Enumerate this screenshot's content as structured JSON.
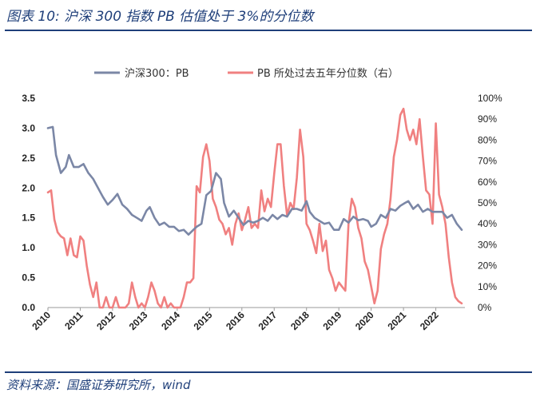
{
  "header": {
    "title": "图表 10:  沪深 300 指数 PB 估值处于 3%的分位数"
  },
  "footer": {
    "source": "资料来源：国盛证券研究所，wind"
  },
  "colors": {
    "pb": "#7b87a6",
    "pct": "#f08080",
    "accent": "#1f3f7a"
  },
  "chart_data": {
    "type": "line",
    "title": "图表 10:  沪深 300 指数 PB 估值处于 3%的分位数",
    "legend_position": "top-center",
    "x_ticks": [
      "2010",
      "2011",
      "2012",
      "2013",
      "2014",
      "2015",
      "2016",
      "2017",
      "2018",
      "2019",
      "2020",
      "2021",
      "2022"
    ],
    "x_range": [
      2010.0,
      2022.9
    ],
    "y_left": {
      "range": [
        0,
        3.5
      ],
      "ticks": [
        "0.0",
        "0.5",
        "1.0",
        "1.5",
        "2.0",
        "2.5",
        "3.0",
        "3.5"
      ]
    },
    "y_right": {
      "range": [
        0,
        1.0
      ],
      "ticks": [
        "0%",
        "10%",
        "20%",
        "30%",
        "40%",
        "50%",
        "60%",
        "70%",
        "80%",
        "90%",
        "100%"
      ]
    },
    "series": [
      {
        "name": "沪深300：PB",
        "axis": "left",
        "color": "#7b87a6",
        "x": [
          2010.0,
          2010.15,
          2010.25,
          2010.4,
          2010.55,
          2010.65,
          2010.8,
          2010.95,
          2011.1,
          2011.25,
          2011.4,
          2011.55,
          2011.7,
          2011.85,
          2012.0,
          2012.15,
          2012.3,
          2012.45,
          2012.6,
          2012.75,
          2012.9,
          2013.05,
          2013.15,
          2013.3,
          2013.45,
          2013.6,
          2013.75,
          2013.9,
          2014.05,
          2014.2,
          2014.35,
          2014.5,
          2014.6,
          2014.75,
          2014.9,
          2015.05,
          2015.2,
          2015.35,
          2015.45,
          2015.6,
          2015.75,
          2015.9,
          2016.05,
          2016.2,
          2016.35,
          2016.5,
          2016.65,
          2016.8,
          2016.95,
          2017.1,
          2017.25,
          2017.4,
          2017.55,
          2017.7,
          2017.85,
          2018.0,
          2018.1,
          2018.25,
          2018.4,
          2018.55,
          2018.7,
          2018.85,
          2019.0,
          2019.15,
          2019.3,
          2019.45,
          2019.6,
          2019.75,
          2019.9,
          2020.0,
          2020.15,
          2020.3,
          2020.45,
          2020.6,
          2020.75,
          2020.9,
          2021.05,
          2021.15,
          2021.3,
          2021.45,
          2021.6,
          2021.75,
          2021.9,
          2022.05,
          2022.2,
          2022.35,
          2022.5,
          2022.65,
          2022.8
        ],
        "values": [
          3.0,
          3.02,
          2.55,
          2.25,
          2.35,
          2.55,
          2.35,
          2.35,
          2.4,
          2.25,
          2.15,
          2.0,
          1.85,
          1.72,
          1.8,
          1.9,
          1.72,
          1.65,
          1.55,
          1.5,
          1.45,
          1.62,
          1.68,
          1.5,
          1.38,
          1.42,
          1.35,
          1.35,
          1.28,
          1.3,
          1.22,
          1.3,
          1.35,
          1.4,
          1.88,
          1.95,
          2.25,
          2.15,
          1.75,
          1.52,
          1.62,
          1.5,
          1.38,
          1.45,
          1.42,
          1.45,
          1.5,
          1.45,
          1.55,
          1.48,
          1.55,
          1.52,
          1.65,
          1.65,
          1.62,
          1.78,
          1.6,
          1.5,
          1.45,
          1.4,
          1.42,
          1.3,
          1.3,
          1.48,
          1.42,
          1.52,
          1.46,
          1.48,
          1.45,
          1.35,
          1.4,
          1.55,
          1.5,
          1.65,
          1.62,
          1.7,
          1.75,
          1.78,
          1.65,
          1.72,
          1.6,
          1.65,
          1.6,
          1.6,
          1.6,
          1.5,
          1.55,
          1.4,
          1.3
        ]
      },
      {
        "name": "PB 所处过去五年分位数（右）",
        "axis": "right",
        "color": "#f08080",
        "x": [
          2010.0,
          2010.1,
          2010.2,
          2010.3,
          2010.4,
          2010.5,
          2010.6,
          2010.7,
          2010.8,
          2010.9,
          2011.0,
          2011.1,
          2011.2,
          2011.3,
          2011.4,
          2011.5,
          2011.6,
          2011.7,
          2011.8,
          2011.9,
          2012.0,
          2012.1,
          2012.2,
          2012.3,
          2012.4,
          2012.5,
          2012.6,
          2012.7,
          2012.8,
          2012.9,
          2013.0,
          2013.1,
          2013.2,
          2013.3,
          2013.4,
          2013.5,
          2013.6,
          2013.7,
          2013.8,
          2013.9,
          2014.0,
          2014.1,
          2014.2,
          2014.3,
          2014.4,
          2014.5,
          2014.6,
          2014.7,
          2014.8,
          2014.9,
          2015.0,
          2015.1,
          2015.2,
          2015.3,
          2015.4,
          2015.5,
          2015.6,
          2015.7,
          2015.8,
          2015.9,
          2016.0,
          2016.1,
          2016.2,
          2016.3,
          2016.4,
          2016.5,
          2016.6,
          2016.7,
          2016.8,
          2016.9,
          2017.0,
          2017.1,
          2017.2,
          2017.3,
          2017.4,
          2017.5,
          2017.6,
          2017.7,
          2017.8,
          2017.9,
          2018.0,
          2018.1,
          2018.2,
          2018.3,
          2018.4,
          2018.5,
          2018.6,
          2018.7,
          2018.8,
          2018.9,
          2019.0,
          2019.1,
          2019.2,
          2019.3,
          2019.4,
          2019.5,
          2019.6,
          2019.7,
          2019.8,
          2019.9,
          2020.0,
          2020.1,
          2020.2,
          2020.3,
          2020.4,
          2020.5,
          2020.6,
          2020.7,
          2020.8,
          2020.9,
          2021.0,
          2021.1,
          2021.2,
          2021.3,
          2021.4,
          2021.5,
          2021.6,
          2021.7,
          2021.8,
          2021.9,
          2022.0,
          2022.1,
          2022.2,
          2022.3,
          2022.4,
          2022.5,
          2022.6,
          2022.7,
          2022.8
        ],
        "values": [
          0.55,
          0.56,
          0.42,
          0.36,
          0.34,
          0.33,
          0.25,
          0.33,
          0.25,
          0.24,
          0.34,
          0.32,
          0.2,
          0.11,
          0.05,
          0.12,
          0.0,
          0.0,
          0.05,
          0.0,
          0.0,
          0.05,
          0.0,
          0.0,
          0.0,
          0.02,
          0.12,
          0.05,
          0.0,
          0.02,
          0.0,
          0.05,
          0.12,
          0.08,
          0.02,
          0.0,
          0.05,
          0.0,
          0.02,
          0.0,
          0.0,
          0.0,
          0.05,
          0.12,
          0.12,
          0.14,
          0.58,
          0.55,
          0.72,
          0.78,
          0.7,
          0.52,
          0.48,
          0.42,
          0.4,
          0.35,
          0.38,
          0.3,
          0.4,
          0.45,
          0.37,
          0.42,
          0.48,
          0.38,
          0.4,
          0.38,
          0.56,
          0.46,
          0.52,
          0.48,
          0.64,
          0.78,
          0.78,
          0.58,
          0.44,
          0.5,
          0.47,
          0.62,
          0.85,
          0.72,
          0.4,
          0.37,
          0.32,
          0.26,
          0.4,
          0.27,
          0.32,
          0.18,
          0.14,
          0.08,
          0.12,
          0.1,
          0.08,
          0.4,
          0.52,
          0.48,
          0.38,
          0.33,
          0.22,
          0.18,
          0.1,
          0.02,
          0.08,
          0.28,
          0.35,
          0.4,
          0.52,
          0.72,
          0.8,
          0.92,
          0.95,
          0.85,
          0.8,
          0.85,
          0.78,
          0.9,
          0.72,
          0.56,
          0.54,
          0.4,
          0.88,
          0.54,
          0.48,
          0.4,
          0.24,
          0.12,
          0.05,
          0.03,
          0.02
        ]
      }
    ]
  }
}
